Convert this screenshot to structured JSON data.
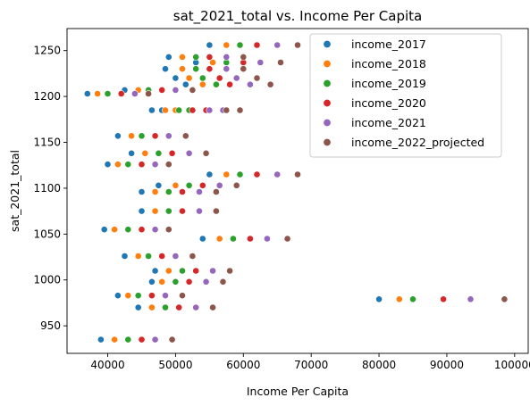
{
  "chart_data": {
    "type": "scatter",
    "title": "sat_2021_total vs. Income Per Capita",
    "xlabel": "Income Per Capita",
    "ylabel": "sat_2021_total",
    "xlim": [
      34000,
      102000
    ],
    "ylim": [
      920,
      1274
    ],
    "xticks": [
      40000,
      50000,
      60000,
      70000,
      80000,
      90000,
      100000
    ],
    "xtick_labels": [
      "40000",
      "50000",
      "60000",
      "70000",
      "80000",
      "90000",
      "100000"
    ],
    "yticks": [
      950,
      1000,
      1050,
      1100,
      1150,
      1200,
      1250
    ],
    "ytick_labels": [
      "950",
      "1000",
      "1050",
      "1100",
      "1150",
      "1200",
      "1250"
    ],
    "grid": false,
    "legend_position": "top-right",
    "y_values": [
      1256,
      1243,
      1237,
      1230,
      1220,
      1213,
      1207,
      1203,
      1185,
      1185,
      1157,
      1138,
      1126,
      1115,
      1103,
      1096,
      1075,
      1055,
      1045,
      1026,
      1010,
      998,
      983,
      970,
      979,
      935
    ],
    "series": [
      {
        "name": "income_2017",
        "color": "#1f77b4",
        "x": [
          55000,
          49000,
          53000,
          48500,
          50000,
          51500,
          42500,
          37000,
          48000,
          46500,
          41500,
          43500,
          40000,
          55000,
          47500,
          45000,
          45000,
          39500,
          54000,
          42500,
          47000,
          46500,
          41500,
          44500,
          80000,
          39000
        ]
      },
      {
        "name": "income_2018",
        "color": "#ff7f0e",
        "x": [
          57500,
          51000,
          55500,
          51000,
          52000,
          54000,
          44500,
          38500,
          50000,
          48500,
          43500,
          45500,
          41500,
          57500,
          50000,
          47000,
          47000,
          41000,
          56500,
          44500,
          49000,
          48000,
          43000,
          46500,
          83000,
          41000
        ]
      },
      {
        "name": "income_2019",
        "color": "#2ca02c",
        "x": [
          59500,
          53000,
          57500,
          53000,
          54000,
          56000,
          46000,
          40000,
          52000,
          50500,
          45000,
          47500,
          43000,
          59500,
          52000,
          49000,
          49000,
          43000,
          58500,
          46000,
          51000,
          50000,
          44500,
          48500,
          85000,
          43000
        ]
      },
      {
        "name": "income_2020",
        "color": "#d62728",
        "x": [
          62000,
          55000,
          60000,
          55000,
          56500,
          58000,
          48000,
          42000,
          54500,
          52500,
          47000,
          49500,
          45000,
          62000,
          54000,
          51000,
          51000,
          45000,
          61000,
          48000,
          53000,
          52000,
          46500,
          50500,
          89500,
          45000
        ]
      },
      {
        "name": "income_2021",
        "color": "#9467bd",
        "x": [
          65000,
          57500,
          62500,
          57500,
          59000,
          61000,
          50000,
          44000,
          57000,
          55000,
          49000,
          52000,
          47000,
          65000,
          56500,
          53500,
          53500,
          47000,
          63500,
          50000,
          55500,
          54500,
          48500,
          53000,
          93500,
          47000
        ]
      },
      {
        "name": "income_2022_projected",
        "color": "#8c564b",
        "x": [
          68000,
          60000,
          65500,
          60000,
          62000,
          64000,
          52500,
          46000,
          59500,
          57500,
          51500,
          54500,
          49000,
          68000,
          59000,
          56000,
          56000,
          49000,
          66500,
          52500,
          58000,
          57000,
          51000,
          55500,
          98500,
          49500
        ]
      }
    ]
  }
}
